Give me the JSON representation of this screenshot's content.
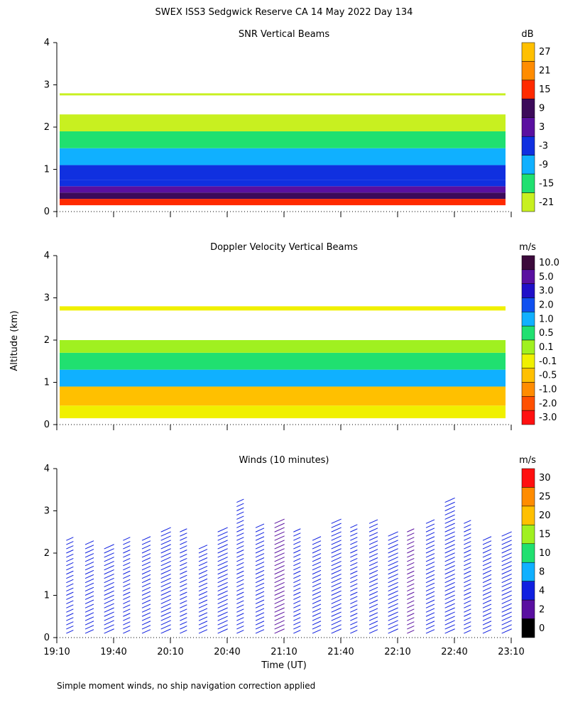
{
  "figure": {
    "title": "SWEX ISS3 Sedgwick Reserve CA  14 May 2022 Day 134",
    "ylabel": "Altitude (km)",
    "xlabel": "Time (UT)",
    "footnote": "Simple moment winds, no ship navigation correction applied"
  },
  "chart_data": [
    {
      "type": "heatmap",
      "title": "SNR Vertical Beams",
      "unit": "dB",
      "ylim": [
        0,
        4
      ],
      "yticks": [
        "0",
        "1",
        "2",
        "3",
        "4"
      ],
      "xlim": [
        "19:10",
        "23:10"
      ],
      "colorbar": {
        "labels": [
          "27",
          "21",
          "15",
          "9",
          "3",
          "-3",
          "-9",
          "-15",
          "-21"
        ],
        "colors": [
          "#ffc000",
          "#ff8c00",
          "#ff2a00",
          "#3c0a5a",
          "#5a10a0",
          "#1030e0",
          "#10b0ff",
          "#20e070",
          "#c8f020"
        ]
      },
      "bands": [
        {
          "from": 0.15,
          "to": 0.3,
          "value": 18
        },
        {
          "from": 0.3,
          "to": 0.45,
          "value": 12
        },
        {
          "from": 0.45,
          "to": 0.6,
          "value": 7
        },
        {
          "from": 0.6,
          "to": 0.75,
          "value": 2
        },
        {
          "from": 0.75,
          "to": 1.1,
          "value": -3
        },
        {
          "from": 1.1,
          "to": 1.5,
          "value": -9
        },
        {
          "from": 1.5,
          "to": 1.9,
          "value": -15
        },
        {
          "from": 1.9,
          "to": 2.3,
          "value": -20
        },
        {
          "from": 2.75,
          "to": 2.8,
          "value": -20
        }
      ]
    },
    {
      "type": "heatmap",
      "title": "Doppler Velocity Vertical Beams",
      "unit": "m/s",
      "ylim": [
        0,
        4
      ],
      "yticks": [
        "0",
        "1",
        "2",
        "3",
        "4"
      ],
      "xlim": [
        "19:10",
        "23:10"
      ],
      "colorbar": {
        "labels": [
          "10.0",
          "5.0",
          "3.0",
          "2.0",
          "1.0",
          "0.5",
          "0.1",
          "-0.1",
          "-0.5",
          "-1.0",
          "-2.0",
          "-3.0"
        ],
        "colors": [
          "#3c0a3c",
          "#5a10a0",
          "#2010c8",
          "#1050f0",
          "#10b0ff",
          "#20e070",
          "#a0f020",
          "#f0f000",
          "#ffc000",
          "#ff8c00",
          "#ff5000",
          "#ff1010"
        ]
      },
      "bands": [
        {
          "from": 0.15,
          "to": 0.45,
          "value": -0.1
        },
        {
          "from": 0.45,
          "to": 0.9,
          "value": -0.5
        },
        {
          "from": 0.9,
          "to": 1.3,
          "value": 1.0
        },
        {
          "from": 1.3,
          "to": 1.7,
          "value": 0.5
        },
        {
          "from": 1.7,
          "to": 2.0,
          "value": 0.1
        },
        {
          "from": 2.7,
          "to": 2.8,
          "value": -0.1
        }
      ]
    },
    {
      "type": "wind_barbs",
      "title": "Winds (10 minutes)",
      "unit": "m/s",
      "ylim": [
        0,
        4
      ],
      "yticks": [
        "0",
        "1",
        "2",
        "3",
        "4"
      ],
      "xlim": [
        "19:10",
        "23:10"
      ],
      "xticks": [
        "19:10",
        "19:40",
        "20:10",
        "20:40",
        "21:10",
        "21:40",
        "22:10",
        "22:40",
        "23:10"
      ],
      "colorbar": {
        "labels": [
          "30",
          "25",
          "20",
          "15",
          "10",
          "8",
          "4",
          "2",
          "0"
        ],
        "colors": [
          "#ff1010",
          "#ff8c00",
          "#ffc000",
          "#a0f020",
          "#20e070",
          "#10b0ff",
          "#1020e0",
          "#5a10a0",
          "#000000"
        ]
      },
      "profile_times": [
        "19:15",
        "19:25",
        "19:35",
        "19:45",
        "19:55",
        "20:05",
        "20:15",
        "20:25",
        "20:35",
        "20:45",
        "20:55",
        "21:05",
        "21:15",
        "21:25",
        "21:35",
        "21:45",
        "21:55",
        "22:05",
        "22:15",
        "22:25",
        "22:35",
        "22:45",
        "22:55",
        "23:05"
      ],
      "max_altitude_km": [
        2.4,
        2.3,
        2.2,
        2.4,
        2.4,
        2.6,
        2.6,
        2.2,
        2.6,
        3.3,
        2.7,
        2.8,
        2.6,
        2.4,
        2.8,
        2.7,
        2.8,
        2.5,
        2.6,
        2.8,
        3.3,
        2.8,
        2.4,
        2.5
      ],
      "typical_speed_ms": [
        4,
        4,
        4,
        5,
        4,
        4,
        5,
        4,
        4,
        4,
        4,
        3,
        4,
        4,
        4,
        4,
        4,
        4,
        3,
        4,
        4,
        4,
        4,
        4
      ]
    }
  ]
}
